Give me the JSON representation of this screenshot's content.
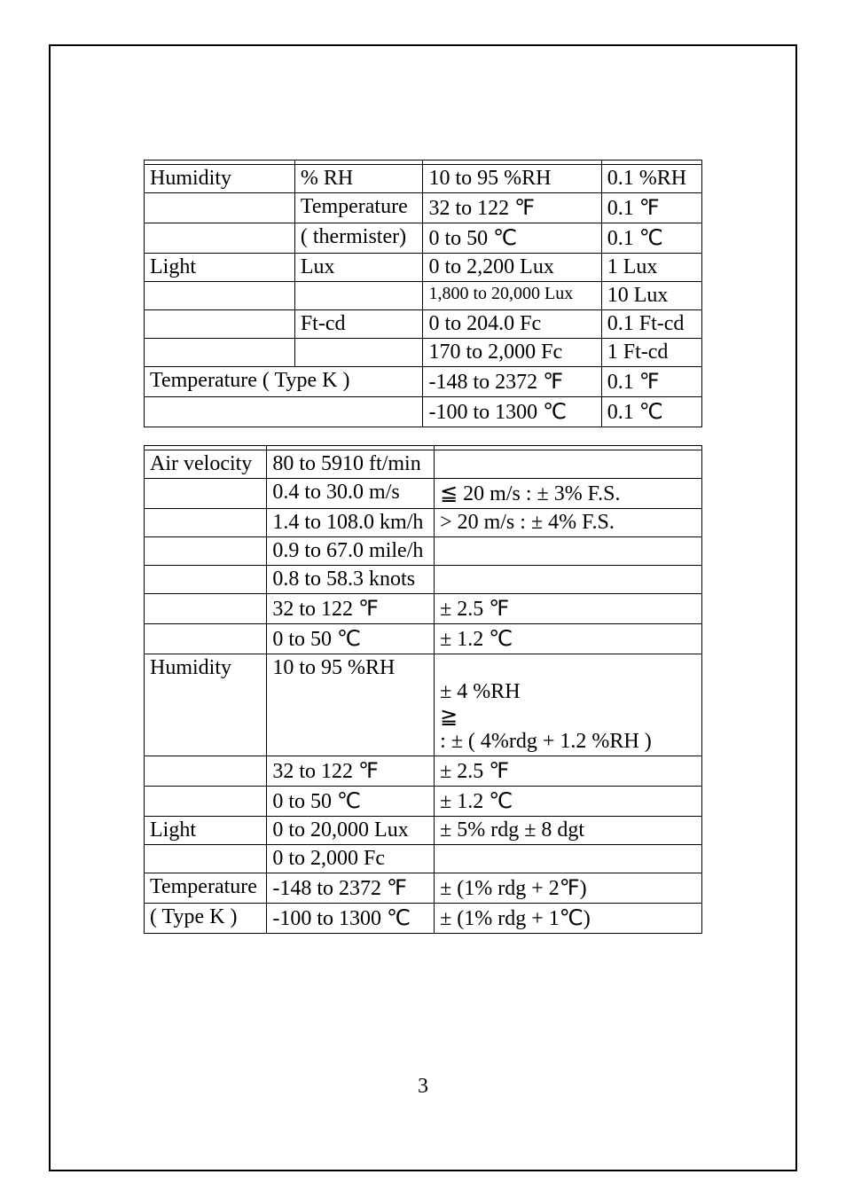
{
  "table1": {
    "rows": [
      {
        "c1": "",
        "c2": "",
        "c3": "",
        "c4": ""
      },
      {
        "c1": "Humidity",
        "c2": "% RH",
        "c3": "10 to 95 %RH",
        "c4": "0.1 %RH"
      },
      {
        "c1": "",
        "c2": "Temperature",
        "c3": "32 to 122 ℉",
        "c4": "0.1 ℉"
      },
      {
        "c1": "",
        "c2": "( thermister)",
        "c3": "0 to 50 ℃",
        "c4": "0.1 ℃"
      },
      {
        "c1": "Light",
        "c2": "Lux",
        "c3": "0 to 2,200 Lux",
        "c4": "1 Lux"
      },
      {
        "c1": "",
        "c2": "",
        "c3_small": true,
        "c3": "1,800 to 20,000 Lux",
        "c4": "10 Lux"
      },
      {
        "c1": "",
        "c2": "Ft-cd",
        "c3": "0 to 204.0 Fc",
        "c4": "0.1 Ft-cd"
      },
      {
        "c1": "",
        "c2": "",
        "c3": "170 to 2,000 Fc",
        "c4": "1 Ft-cd"
      },
      {
        "c12": "Temperature ( Type K )",
        "c3": "-148 to 2372 ℉",
        "c4": "0.1 ℉"
      },
      {
        "c12": "",
        "c3": "-100 to 1300 ℃",
        "c4": "0.1 ℃"
      }
    ]
  },
  "table2": {
    "rows": [
      {
        "c1": "",
        "c2": "",
        "c3": ""
      },
      {
        "c1": "Air velocity",
        "c2": "80 to 5910 ft/min",
        "c3": ""
      },
      {
        "c1": "",
        "c2": "0.4 to 30.0 m/s",
        "c3": "≦ 20 m/s : ± 3% F.S."
      },
      {
        "c1": "",
        "c2": "1.4 to 108.0 km/h",
        "c3": "> 20 m/s : ± 4% F.S."
      },
      {
        "c1": "",
        "c2": "0.9 to 67.0 mile/h",
        "c3": ""
      },
      {
        "c1": "",
        "c2": "0.8 to 58.3 knots",
        "c3": ""
      },
      {
        "c1": "",
        "c2": "32 to 122 ℉",
        "c3": "± 2.5 ℉"
      },
      {
        "c1": "",
        "c2": "0 to 50 ℃",
        "c3": "± 1.2 ℃"
      },
      {
        "c1": "Humidity",
        "c2": "10 to 95 %RH",
        "c3_multi": [
          "",
          " ± 4 %RH",
          "≧",
          "  : ± ( 4%rdg  + 1.2  %RH  )"
        ]
      },
      {
        "c1": "",
        "c2": "32 to 122 ℉",
        "c3": "± 2.5 ℉"
      },
      {
        "c1": "",
        "c2": "0 to 50 ℃",
        "c3": "± 1.2 ℃"
      },
      {
        "c1": "Light",
        "c2": "0 to 20,000 Lux",
        "c3": "± 5% rdg  ± 8 dgt"
      },
      {
        "c1": "",
        "c2": "0 to 2,000 Fc",
        "c3": ""
      },
      {
        "c1": "Temperature",
        "c2": "-148 to 2372 ℉",
        "c3": "± (1% rdg + 2℉)"
      },
      {
        "c1": " ( Type K  )",
        "c2": "-100 to 1300 ℃",
        "c3": "± (1% rdg + 1℃)"
      }
    ]
  },
  "pagenum": "3"
}
